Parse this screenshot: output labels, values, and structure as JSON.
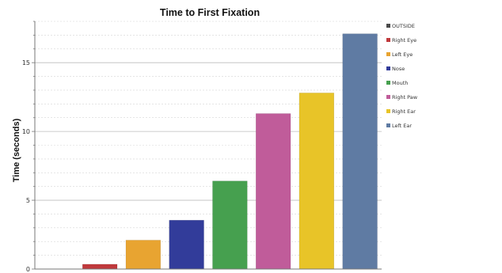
{
  "chart_data": {
    "type": "bar",
    "title": "Time to First Fixation",
    "xlabel": "",
    "ylabel": "Time (seconds)",
    "ylim": [
      0,
      18
    ],
    "yticks": [
      0,
      5,
      10,
      15
    ],
    "grid": true,
    "legend_position": "right",
    "series": [
      {
        "name": "OUTSIDE",
        "value": 0,
        "color": "#4a4a4a"
      },
      {
        "name": "Right Eye",
        "value": 0.35,
        "color": "#c0393c"
      },
      {
        "name": "Left Eye",
        "value": 2.1,
        "color": "#e8a431"
      },
      {
        "name": "Nose",
        "value": 3.55,
        "color": "#323c9a"
      },
      {
        "name": "Mouth",
        "value": 6.4,
        "color": "#46a04f"
      },
      {
        "name": "Right Paw",
        "value": 11.3,
        "color": "#c05c9a"
      },
      {
        "name": "Right Ear",
        "value": 12.8,
        "color": "#e8c428"
      },
      {
        "name": "Left Ear",
        "value": 17.1,
        "color": "#5f7ba3"
      }
    ]
  }
}
